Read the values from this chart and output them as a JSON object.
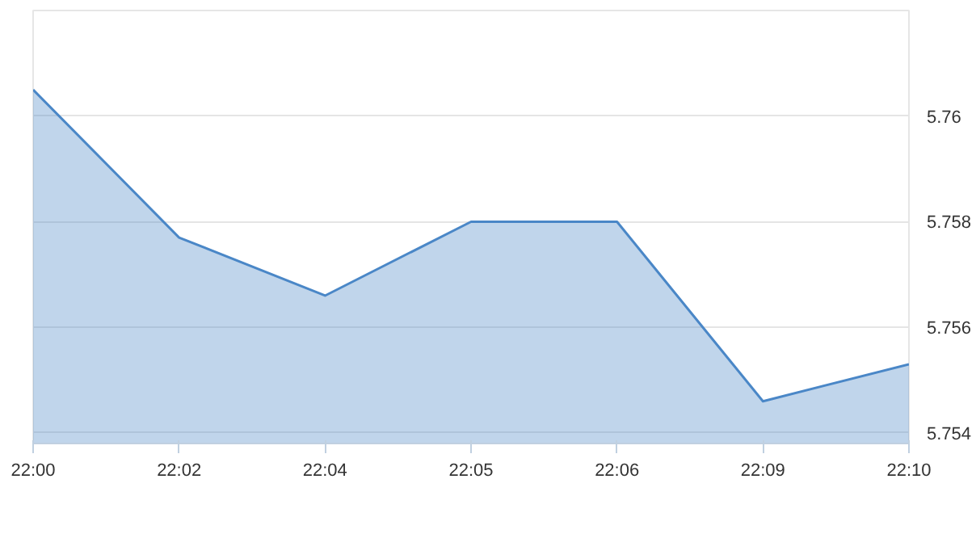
{
  "chart_data": {
    "type": "area",
    "categories": [
      "22:00",
      "22:02",
      "22:04",
      "22:05",
      "22:06",
      "22:09",
      "22:10"
    ],
    "series": [
      {
        "color": "#4a87c7",
        "values": [
          5.7605,
          5.7577,
          5.7566,
          5.758,
          5.758,
          5.7546,
          5.7553
        ]
      }
    ],
    "ylim": [
      5.7538,
      5.762
    ],
    "yticks": [
      5.754,
      5.756,
      5.758,
      5.76,
      {
        "value": 5.762,
        "label": null
      }
    ],
    "grid": "y"
  }
}
